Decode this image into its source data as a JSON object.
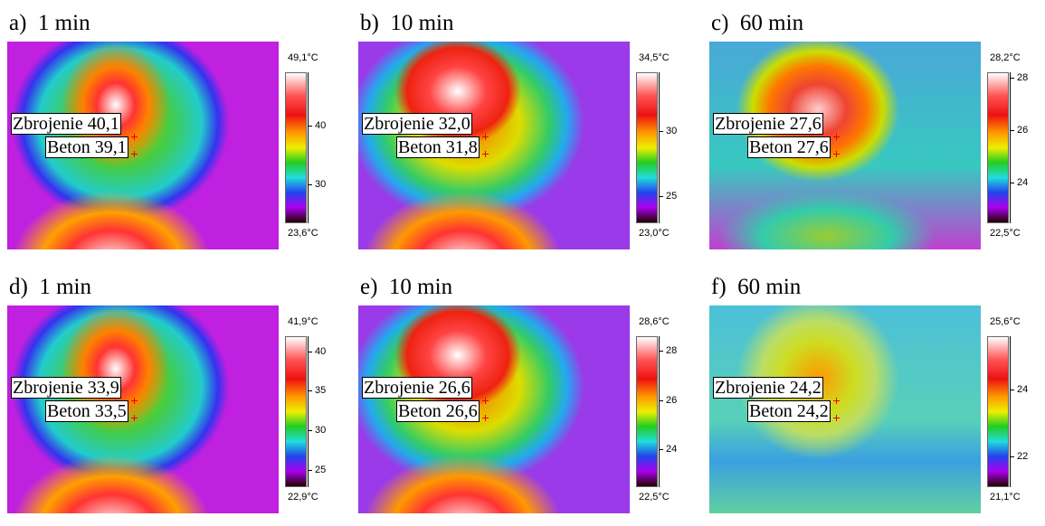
{
  "panels": [
    {
      "letter": "a)",
      "time": "1 min",
      "reinforcement": "Zbrojenie 40,1",
      "concrete": "Beton 39,1",
      "max": "49,1°C",
      "min": "23,6°C",
      "ticks": [
        "40",
        "30"
      ]
    },
    {
      "letter": "b)",
      "time": "10 min",
      "reinforcement": "Zbrojenie 32,0",
      "concrete": "Beton 31,8",
      "max": "34,5°C",
      "min": "23,0°C",
      "ticks": [
        "30",
        "25"
      ]
    },
    {
      "letter": "c)",
      "time": "60 min",
      "reinforcement": "Zbrojenie 27,6",
      "concrete": "Beton 27,6",
      "max": "28,2°C",
      "min": "22,5°C",
      "ticks": [
        "28",
        "26",
        "24"
      ]
    },
    {
      "letter": "d)",
      "time": "1 min",
      "reinforcement": "Zbrojenie 33,9",
      "concrete": "Beton 33,5",
      "max": "41,9°C",
      "min": "22,9°C",
      "ticks": [
        "40",
        "35",
        "30",
        "25"
      ]
    },
    {
      "letter": "e)",
      "time": "10 min",
      "reinforcement": "Zbrojenie 26,6",
      "concrete": "Beton 26,6",
      "max": "28,6°C",
      "min": "22,5°C",
      "ticks": [
        "28",
        "26",
        "24"
      ]
    },
    {
      "letter": "f)",
      "time": "60 min",
      "reinforcement": "Zbrojenie 24,2",
      "concrete": "Beton 24,2",
      "max": "25,6°C",
      "min": "21,1°C",
      "ticks": [
        "24",
        "22"
      ]
    }
  ]
}
